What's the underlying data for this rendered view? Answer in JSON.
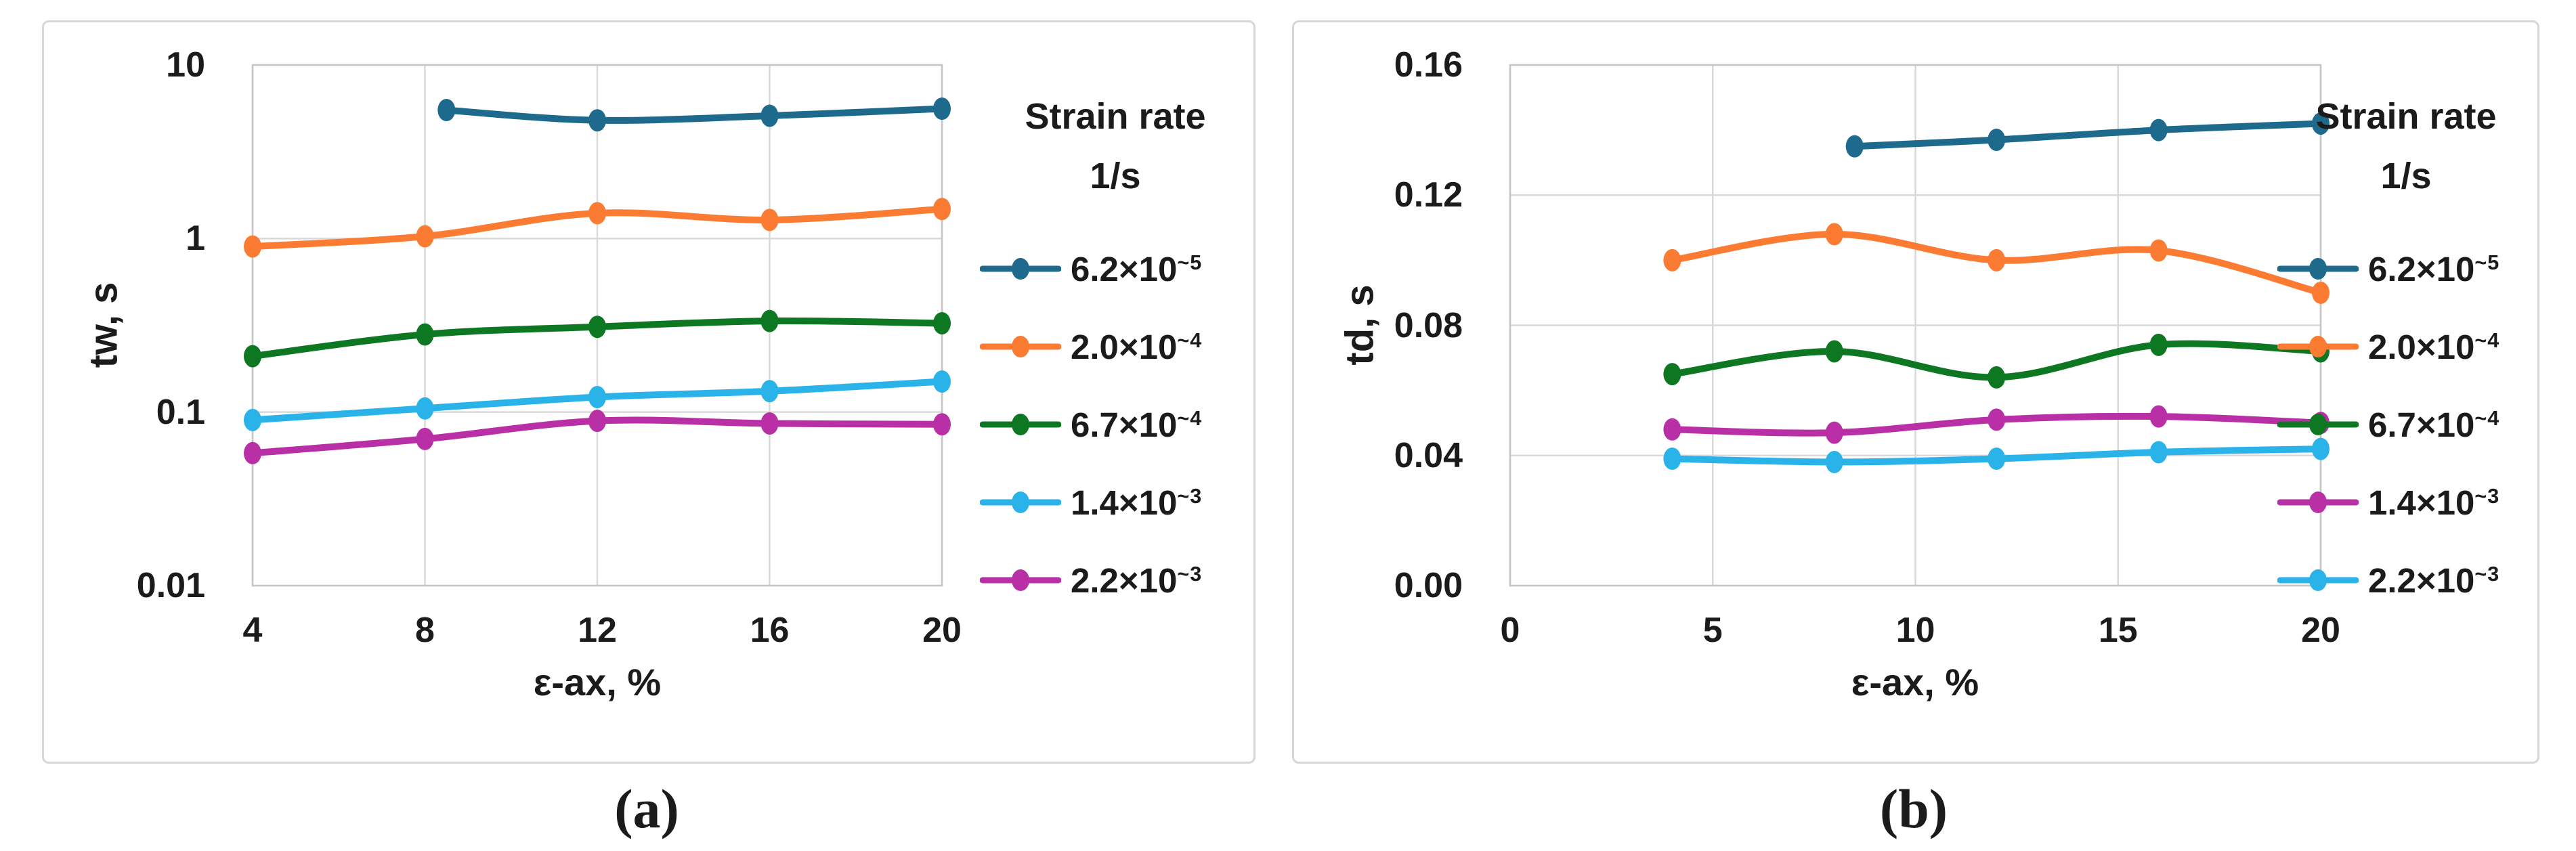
{
  "figure": {
    "captions": {
      "a": "(a)",
      "b": "(b)"
    },
    "legend_title_line1": "Strain rate",
    "legend_title_line2": "1/s",
    "background": "#ffffff",
    "panel_border_color": "#d8d7d8",
    "gridline_color": "#d9d9d9",
    "plot_border_color": "#c6c6c6",
    "text_color": "#1b1b1b"
  },
  "chart_data": [
    {
      "id": "a",
      "type": "line",
      "title": "",
      "xlabel": "ε-ax, %",
      "ylabel": "tw, s",
      "x_scale": "linear",
      "y_scale": "log",
      "xlim": [
        4,
        20
      ],
      "ylim": [
        0.01,
        10
      ],
      "grid": true,
      "legend_position": "right",
      "x_ticks": [
        {
          "v": 4,
          "label": "4"
        },
        {
          "v": 8,
          "label": "8"
        },
        {
          "v": 12,
          "label": "12"
        },
        {
          "v": 16,
          "label": "16"
        },
        {
          "v": 20,
          "label": "20"
        }
      ],
      "y_ticks": [
        {
          "v": 10,
          "label": "10"
        },
        {
          "v": 1,
          "label": "1"
        },
        {
          "v": 0.1,
          "label": "0.1"
        },
        {
          "v": 0.01,
          "label": "0.01"
        }
      ],
      "series": [
        {
          "label_base": "6.2×10",
          "label_sup": "~5",
          "color": "#1d6a8c",
          "x": [
            8.5,
            12,
            16,
            20
          ],
          "y": [
            5.5,
            4.8,
            5.1,
            5.6
          ]
        },
        {
          "label_base": "2.0×10",
          "label_sup": "~4",
          "color": "#fb7b33",
          "x": [
            4,
            8,
            12,
            16,
            20
          ],
          "y": [
            0.9,
            1.03,
            1.4,
            1.28,
            1.48
          ]
        },
        {
          "label_base": "6.7×10",
          "label_sup": "~4",
          "color": "#0e7722",
          "x": [
            4,
            8,
            12,
            16,
            20
          ],
          "y": [
            0.21,
            0.28,
            0.31,
            0.335,
            0.325
          ]
        },
        {
          "label_base": "1.4×10",
          "label_sup": "~3",
          "color": "#29b3e8",
          "x": [
            4,
            8,
            12,
            16,
            20
          ],
          "y": [
            0.09,
            0.105,
            0.122,
            0.132,
            0.15
          ]
        },
        {
          "label_base": "2.2×10",
          "label_sup": "~3",
          "color": "#b92fa6",
          "x": [
            4,
            8,
            12,
            16,
            20
          ],
          "y": [
            0.058,
            0.07,
            0.089,
            0.086,
            0.085
          ]
        }
      ]
    },
    {
      "id": "b",
      "type": "line",
      "title": "",
      "xlabel": "ε-ax, %",
      "ylabel": "td, s",
      "x_scale": "linear",
      "y_scale": "linear",
      "xlim": [
        0,
        20
      ],
      "ylim": [
        0,
        0.16
      ],
      "grid": true,
      "legend_position": "right",
      "x_ticks": [
        {
          "v": 0,
          "label": "0"
        },
        {
          "v": 5,
          "label": "5"
        },
        {
          "v": 10,
          "label": "10"
        },
        {
          "v": 15,
          "label": "15"
        },
        {
          "v": 20,
          "label": "20"
        }
      ],
      "y_ticks": [
        {
          "v": 0.16,
          "label": "0.16"
        },
        {
          "v": 0.12,
          "label": "0.12"
        },
        {
          "v": 0.08,
          "label": "0.08"
        },
        {
          "v": 0.04,
          "label": "0.04"
        },
        {
          "v": 0,
          "label": "0.00"
        }
      ],
      "series": [
        {
          "label_base": "6.2×10",
          "label_sup": "~5",
          "color": "#1d6a8c",
          "x": [
            8.5,
            12,
            16,
            20
          ],
          "y": [
            0.135,
            0.137,
            0.14,
            0.142
          ]
        },
        {
          "label_base": "2.0×10",
          "label_sup": "~4",
          "color": "#fb7b33",
          "x": [
            4,
            8,
            12,
            16,
            20
          ],
          "y": [
            0.1,
            0.108,
            0.1,
            0.103,
            0.09
          ]
        },
        {
          "label_base": "6.7×10",
          "label_sup": "~4",
          "color": "#0e7722",
          "x": [
            4,
            8,
            12,
            16,
            20
          ],
          "y": [
            0.065,
            0.072,
            0.064,
            0.074,
            0.072
          ]
        },
        {
          "label_base": "1.4×10",
          "label_sup": "~3",
          "color": "#b92fa6",
          "x": [
            4,
            8,
            12,
            16,
            20
          ],
          "y": [
            0.048,
            0.047,
            0.051,
            0.052,
            0.05
          ]
        },
        {
          "label_base": "2.2×10",
          "label_sup": "~3",
          "color": "#29b3e8",
          "x": [
            4,
            8,
            12,
            16,
            20
          ],
          "y": [
            0.039,
            0.038,
            0.039,
            0.041,
            0.042
          ]
        }
      ]
    }
  ]
}
